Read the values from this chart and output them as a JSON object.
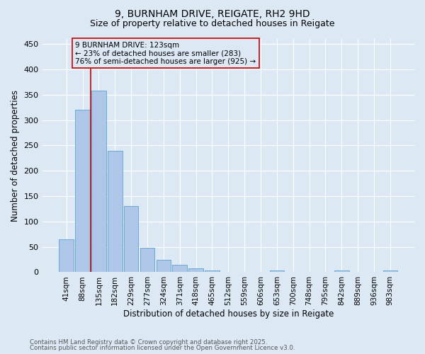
{
  "title": "9, BURNHAM DRIVE, REIGATE, RH2 9HD",
  "subtitle": "Size of property relative to detached houses in Reigate",
  "xlabel": "Distribution of detached houses by size in Reigate",
  "ylabel": "Number of detached properties",
  "footnote1": "Contains HM Land Registry data © Crown copyright and database right 2025.",
  "footnote2": "Contains public sector information licensed under the Open Government Licence v3.0.",
  "categories": [
    "41sqm",
    "88sqm",
    "135sqm",
    "182sqm",
    "229sqm",
    "277sqm",
    "324sqm",
    "371sqm",
    "418sqm",
    "465sqm",
    "512sqm",
    "559sqm",
    "606sqm",
    "653sqm",
    "700sqm",
    "748sqm",
    "795sqm",
    "842sqm",
    "889sqm",
    "936sqm",
    "983sqm"
  ],
  "values": [
    65,
    320,
    358,
    240,
    130,
    48,
    25,
    14,
    8,
    3,
    1,
    1,
    0,
    3,
    1,
    0,
    0,
    3,
    0,
    1,
    4
  ],
  "bar_color": "#aec6e8",
  "bar_edge_color": "#6aaad4",
  "background_color": "#dce9f5",
  "grid_color": "#ffffff",
  "vline_color": "#cc0000",
  "vline_x_index": 1.5,
  "annotation_line1": "9 BURNHAM DRIVE: 123sqm",
  "annotation_line2": "← 23% of detached houses are smaller (283)",
  "annotation_line3": "76% of semi-detached houses are larger (925) →",
  "annotation_box_color": "#cc0000",
  "ylim": [
    0,
    460
  ],
  "yticks": [
    0,
    50,
    100,
    150,
    200,
    250,
    300,
    350,
    400,
    450
  ]
}
